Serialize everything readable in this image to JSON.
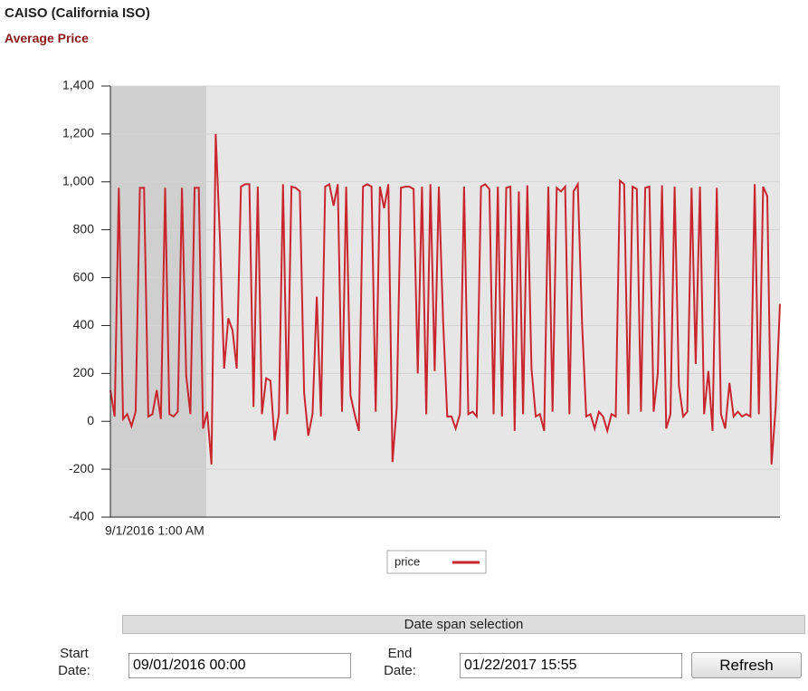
{
  "title": "CAISO (California ISO)",
  "subtitle": "Average Price",
  "chart_data": {
    "type": "line",
    "categories": [
      "9/1/2016 1:00 AM",
      null,
      null,
      null,
      null,
      null,
      null,
      null,
      null,
      null,
      null,
      null,
      null,
      null,
      null,
      null,
      null,
      null,
      null,
      null,
      null,
      null,
      null,
      null,
      null,
      null,
      null,
      null,
      null,
      null,
      null,
      null,
      null,
      null,
      null,
      null,
      null,
      null,
      null,
      null,
      null,
      null,
      null,
      null,
      null,
      null,
      null,
      null,
      null,
      null,
      null,
      null,
      null,
      null,
      null,
      null,
      null,
      null,
      null,
      null,
      null,
      null,
      null,
      null,
      null,
      null,
      null,
      null,
      null,
      null,
      null,
      null,
      null,
      null,
      null,
      null,
      null,
      null,
      null,
      null,
      null,
      null,
      null,
      null,
      null,
      null,
      null,
      null,
      null,
      null,
      null,
      null,
      null,
      null,
      null,
      null,
      null,
      null,
      null,
      null,
      null,
      null,
      null,
      null,
      null,
      null,
      null,
      null,
      null,
      null,
      null,
      null,
      null,
      null,
      null,
      null,
      null,
      null,
      null,
      null,
      null,
      null,
      null,
      null,
      null,
      null,
      null,
      null,
      null,
      null,
      null,
      null,
      null,
      null,
      null,
      null,
      null,
      null,
      null,
      null,
      null,
      null,
      null,
      null,
      null,
      null,
      null,
      null,
      null,
      null,
      null,
      null,
      null,
      null,
      null,
      null,
      null,
      null,
      null,
      null
    ],
    "series": [
      {
        "name": "price",
        "color": "#c8262e",
        "values": [
          130,
          20,
          975,
          10,
          30,
          -20,
          40,
          975,
          975,
          20,
          30,
          130,
          10,
          975,
          30,
          20,
          40,
          975,
          190,
          30,
          975,
          975,
          -30,
          40,
          -180,
          1200,
          770,
          220,
          430,
          380,
          220,
          980,
          990,
          990,
          60,
          980,
          30,
          180,
          170,
          -80,
          30,
          990,
          30,
          980,
          975,
          960,
          120,
          -60,
          30,
          520,
          20,
          980,
          990,
          900,
          990,
          40,
          980,
          110,
          30,
          -40,
          980,
          990,
          980,
          40,
          980,
          890,
          990,
          -170,
          60,
          975,
          980,
          980,
          970,
          200,
          980,
          30,
          990,
          210,
          980,
          420,
          20,
          20,
          -30,
          30,
          980,
          30,
          40,
          20,
          980,
          990,
          970,
          30,
          980,
          20,
          975,
          980,
          -40,
          960,
          30,
          985,
          220,
          20,
          30,
          -40,
          980,
          40,
          975,
          960,
          980,
          30,
          960,
          990,
          410,
          20,
          30,
          -30,
          40,
          20,
          -40,
          30,
          20,
          1005,
          990,
          30,
          980,
          970,
          40,
          975,
          980,
          40,
          200,
          985,
          -30,
          30,
          980,
          150,
          20,
          40,
          975,
          240,
          980,
          30,
          210,
          -40,
          975,
          30,
          -30,
          160,
          20,
          40,
          20,
          30,
          20,
          990,
          30,
          980,
          940,
          -180,
          60,
          490
        ]
      }
    ],
    "ylim": [
      -400,
      1400
    ],
    "yticks": [
      -400,
      -200,
      0,
      200,
      400,
      600,
      800,
      {
        "value": 1000,
        "label": "1,000"
      },
      {
        "value": 1200,
        "label": "1,200"
      },
      {
        "value": 1400,
        "label": "1,400"
      }
    ],
    "grid": true,
    "legend": "bottom"
  },
  "form": {
    "section_title": "Date span selection",
    "start_label": "Start Date:",
    "start_value": "09/01/2016 00:00",
    "end_label": "End Date:",
    "end_value": "01/22/2017 15:55",
    "button": "Refresh"
  }
}
